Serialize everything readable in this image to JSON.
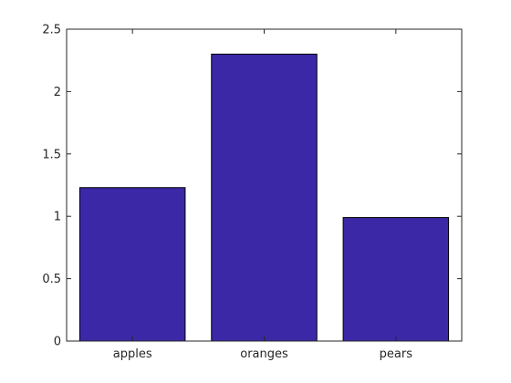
{
  "chart_data": {
    "type": "bar",
    "categories": [
      "apples",
      "oranges",
      "pears"
    ],
    "values": [
      1.23,
      2.3,
      0.99
    ],
    "ylim": [
      0,
      2.5
    ],
    "yticks": [
      0,
      0.5,
      1,
      1.5,
      2,
      2.5
    ],
    "ytick_labels": [
      "0",
      "0.5",
      "1",
      "1.5",
      "2",
      "2.5"
    ],
    "grid": false,
    "bar_color": "#3b28a6",
    "title": "",
    "xlabel": "",
    "ylabel": ""
  }
}
